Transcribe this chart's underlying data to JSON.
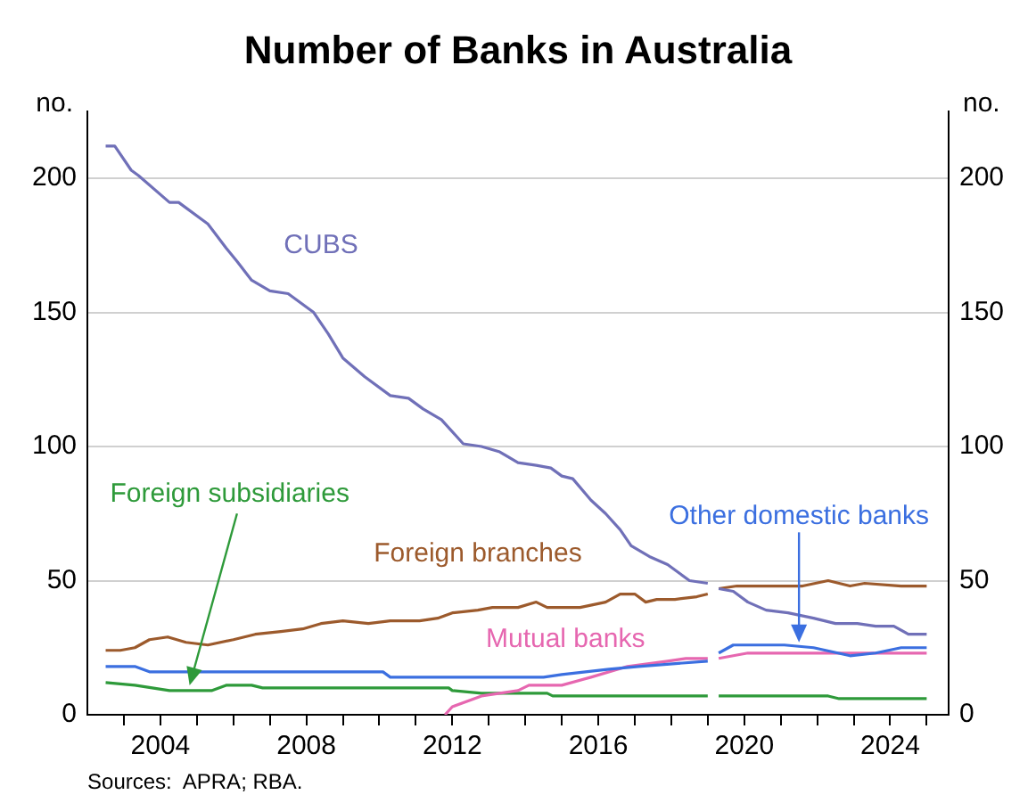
{
  "chart_data": {
    "type": "line",
    "title": "Number of Banks in Australia",
    "ylabel": "no.",
    "y2label": "no.",
    "xlim": [
      2002,
      2025.6
    ],
    "xticks": [
      {
        "value": 2003,
        "label": null
      },
      2004,
      {
        "value": 2005,
        "label": null
      },
      {
        "value": 2006,
        "label": null
      },
      {
        "value": 2007,
        "label": null
      },
      2008,
      {
        "value": 2009,
        "label": null
      },
      {
        "value": 2010,
        "label": null
      },
      {
        "value": 2011,
        "label": null
      },
      2012,
      {
        "value": 2013,
        "label": null
      },
      {
        "value": 2014,
        "label": null
      },
      {
        "value": 2015,
        "label": null
      },
      2016,
      {
        "value": 2017,
        "label": null
      },
      {
        "value": 2018,
        "label": null
      },
      {
        "value": 2019,
        "label": null
      },
      2020,
      {
        "value": 2021,
        "label": null
      },
      {
        "value": 2022,
        "label": null
      },
      {
        "value": 2023,
        "label": null
      },
      2024,
      {
        "value": 2025,
        "label": null
      }
    ],
    "ylim": [
      0,
      225
    ],
    "yticks": [
      0,
      50,
      100,
      150,
      200
    ],
    "y2lim": [
      0,
      225
    ],
    "y2ticks": [
      0,
      50,
      100,
      150,
      200
    ],
    "grid": "y",
    "legend": false,
    "marker": "none",
    "line_style": "solid",
    "series": [
      {
        "name": "CUBS",
        "color": "#7070b8",
        "x": [
          2002.5,
          2002.75,
          2003.2,
          2003.4,
          2004.25,
          2004.5,
          2005.3,
          2005.8,
          2006.1,
          2006.5,
          2007.0,
          2007.5,
          2008.2,
          2008.6,
          2009.0,
          2009.6,
          2010.3,
          2010.8,
          2011.2,
          2011.7,
          2012.3,
          2012.8,
          2013.3,
          2013.8,
          2014.3,
          2014.7,
          2015.0,
          2015.3,
          2015.8,
          2016.2,
          2016.6,
          2016.9,
          2017.4,
          2017.9,
          2018.2,
          2018.5,
          2019.0,
          2019.15,
          2019.3,
          2019.7,
          2020.1,
          2020.6,
          2021.2,
          2021.9,
          2022.5,
          2023.1,
          2023.6,
          2024.1,
          2024.5,
          2025.0
        ],
        "values": [
          212,
          212,
          203,
          201,
          191,
          191,
          183,
          174,
          169,
          162,
          158,
          157,
          150,
          142,
          133,
          126,
          119,
          118,
          114,
          110,
          101,
          100,
          98,
          94,
          93,
          92,
          89,
          88,
          80,
          75,
          69,
          63,
          59,
          56,
          53,
          50,
          49,
          null,
          47,
          46,
          42,
          39,
          38,
          36,
          34,
          34,
          33,
          33,
          30,
          30
        ]
      },
      {
        "name": "Foreign branches",
        "color": "#9c5a2c",
        "x": [
          2002.5,
          2002.9,
          2003.3,
          2003.7,
          2004.2,
          2004.7,
          2005.3,
          2006.0,
          2006.6,
          2007.3,
          2007.9,
          2008.4,
          2009.0,
          2009.7,
          2010.3,
          2011.1,
          2011.6,
          2012.0,
          2012.7,
          2013.1,
          2013.8,
          2014.3,
          2014.6,
          2015.5,
          2016.2,
          2016.6,
          2017.0,
          2017.3,
          2017.6,
          2018.1,
          2018.7,
          2019.0,
          2019.15,
          2019.3,
          2019.8,
          2020.8,
          2021.6,
          2022.3,
          2022.9,
          2023.3,
          2024.3,
          2025.0
        ],
        "values": [
          24,
          24,
          25,
          28,
          29,
          27,
          26,
          28,
          30,
          31,
          32,
          34,
          35,
          34,
          35,
          35,
          36,
          38,
          39,
          40,
          40,
          42,
          40,
          40,
          42,
          45,
          45,
          42,
          43,
          43,
          44,
          45,
          null,
          47,
          48,
          48,
          48,
          50,
          48,
          49,
          48,
          48
        ]
      },
      {
        "name": "Other domestic banks",
        "color": "#3b6fe0",
        "x": [
          2002.5,
          2003.3,
          2003.7,
          2010.1,
          2010.3,
          2012.0,
          2012.3,
          2014.5,
          2015.0,
          2016.3,
          2017.1,
          2019.0,
          2019.15,
          2019.3,
          2019.7,
          2021.1,
          2021.9,
          2022.9,
          2023.6,
          2024.3,
          2025.0
        ],
        "values": [
          18,
          18,
          16,
          16,
          14,
          14,
          14,
          14,
          15,
          17,
          18,
          20,
          null,
          23,
          26,
          26,
          25,
          22,
          23,
          25,
          25
        ]
      },
      {
        "name": "Mutual banks",
        "color": "#e667b0",
        "x": [
          2011.8,
          2012.0,
          2012.8,
          2013.8,
          2014.1,
          2015.0,
          2015.8,
          2016.8,
          2017.9,
          2018.4,
          2019.0,
          2019.15,
          2019.3,
          2020.1,
          2025.0
        ],
        "values": [
          0,
          3,
          7,
          9,
          11,
          11,
          14,
          18,
          20,
          21,
          21,
          null,
          21,
          23,
          23
        ]
      },
      {
        "name": "Foreign subsidiaries",
        "color": "#2e9a3a",
        "x": [
          2002.5,
          2003.3,
          2004.25,
          2005.4,
          2005.8,
          2006.5,
          2006.8,
          2011.9,
          2012.0,
          2012.8,
          2014.6,
          2014.75,
          2019.0,
          2019.15,
          2019.3,
          2022.3,
          2022.6,
          2025.0
        ],
        "values": [
          12,
          11,
          9,
          9,
          11,
          11,
          10,
          10,
          9,
          8,
          8,
          7,
          7,
          null,
          7,
          7,
          6,
          6
        ]
      }
    ],
    "annotations": [
      "Sources:  APRA; RBA."
    ]
  }
}
